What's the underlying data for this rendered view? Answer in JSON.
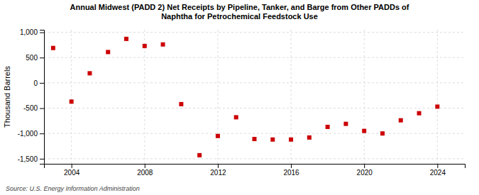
{
  "chart_data": {
    "type": "scatter",
    "title": "Annual Midwest (PADD 2) Net Receipts by Pipeline, Tanker, and Barge from Other PADDs of\nNaphtha for Petrochemical Feedstock Use",
    "ylabel": "Thousand Barrels",
    "source": "Source: U.S. Energy Information Administration",
    "x": [
      2003,
      2004,
      2005,
      2006,
      2007,
      2008,
      2009,
      2010,
      2011,
      2012,
      2013,
      2014,
      2015,
      2016,
      2017,
      2018,
      2019,
      2020,
      2021,
      2022,
      2023,
      2024
    ],
    "values": [
      690,
      -370,
      190,
      610,
      870,
      730,
      760,
      -420,
      -1430,
      -1050,
      -680,
      -1110,
      -1120,
      -1120,
      -1080,
      -870,
      -810,
      -950,
      -1000,
      -740,
      -600,
      -470
    ],
    "color": "#cc0000",
    "marker": "square",
    "xlim": [
      2002.5,
      2025.5
    ],
    "xticks": [
      2004,
      2008,
      2012,
      2016,
      2020,
      2024
    ],
    "ylim": [
      -1600,
      1050
    ],
    "yticks": [
      {
        "value": -1500,
        "label": "-1,500"
      },
      {
        "value": -1000,
        "label": "-1,000"
      },
      -500,
      0,
      500,
      {
        "value": 1000,
        "label": "1,000"
      }
    ],
    "grid": true
  }
}
